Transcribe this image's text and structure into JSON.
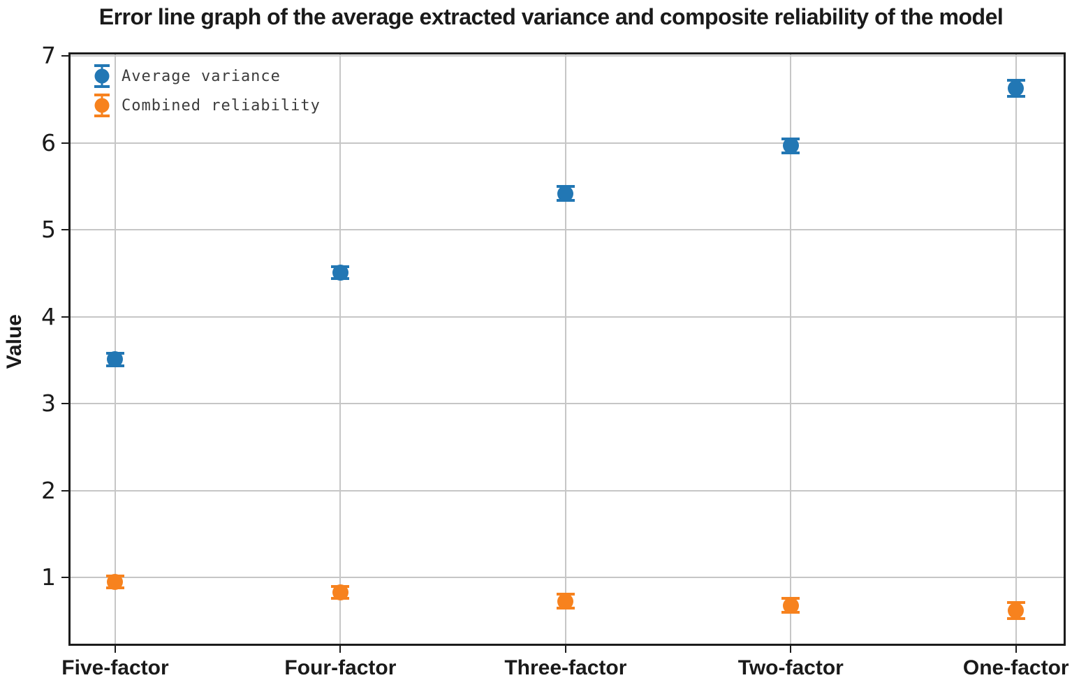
{
  "chart_data": {
    "type": "scatter",
    "subtype": "errorbar",
    "title": "Error line graph of the average extracted variance and composite reliability of the model",
    "xlabel": "",
    "ylabel": "Value",
    "categories": [
      "Five-factor",
      "Four-factor",
      "Three-factor",
      "Two-factor",
      "One-factor"
    ],
    "series": [
      {
        "name": "Average variance",
        "color": "#2277b4",
        "values": [
          3.51,
          4.51,
          5.42,
          5.97,
          6.63
        ],
        "errors": [
          0.07,
          0.07,
          0.08,
          0.08,
          0.09
        ]
      },
      {
        "name": "Combined reliability",
        "color": "#f7821e",
        "values": [
          0.95,
          0.83,
          0.73,
          0.68,
          0.62
        ],
        "errors": [
          0.07,
          0.07,
          0.08,
          0.08,
          0.09
        ]
      }
    ],
    "yticks": [
      1,
      2,
      3,
      4,
      5,
      6,
      7
    ],
    "ylim": [
      0.24,
      7.02
    ],
    "grid": true,
    "legend_position": "upper left",
    "marker": "circle-with-errorbar-caps"
  },
  "colors": {
    "grid": "#c6c6c6",
    "spine": "#1c1c1c",
    "tick_label": "#1a1a1a",
    "legend_text": "#3c3c3c",
    "background": "#ffffff"
  }
}
